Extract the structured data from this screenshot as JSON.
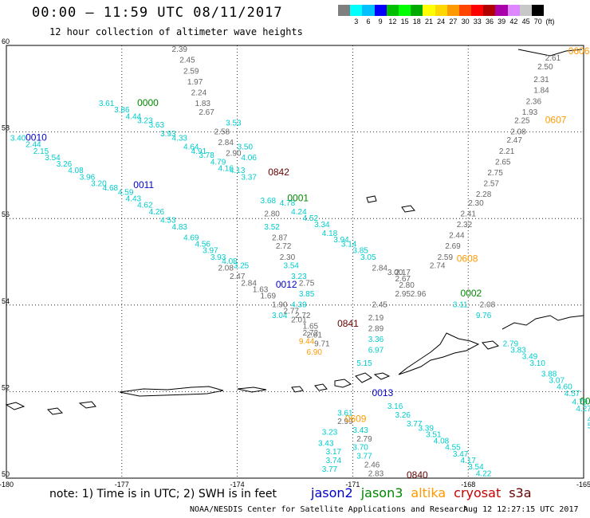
{
  "title": "00:00 – 11:59 UTC 08/11/2017",
  "subtitle": "12 hour collection of altimeter wave heights",
  "colorbar": {
    "colors": [
      "#7f7f7f",
      "#00ffff",
      "#00bfff",
      "#0000ff",
      "#00bf00",
      "#00ff00",
      "#00aa00",
      "#ffff00",
      "#ffd700",
      "#ff9900",
      "#ff4500",
      "#ff0000",
      "#b00000",
      "#aa00aa",
      "#dd88ff",
      "#c8c8c8",
      "#000000"
    ],
    "labels": [
      "3",
      "6",
      "9",
      "12",
      "15",
      "18",
      "21",
      "24",
      "27",
      "30",
      "33",
      "36",
      "39",
      "42",
      "45",
      "70",
      "(ft)"
    ]
  },
  "map": {
    "lon_ticks": [
      "-180",
      "-177",
      "-174",
      "-171",
      "-168",
      "-165"
    ],
    "lat_ticks": [
      "60",
      "58",
      "56",
      "54",
      "52",
      "50"
    ]
  },
  "satellite_colors": {
    "jason2": "#0000cc",
    "jason3": "#008800",
    "altika": "#ff9900",
    "cryosat": "#cc0000",
    "s3a": "#660000",
    "wave": "#00cccc",
    "grey": "#666666"
  },
  "time_labels": [
    {
      "text": "0000",
      "sat": "jason3",
      "lon": -176.6,
      "lat": 58.6
    },
    {
      "text": "0010",
      "sat": "jason2",
      "lon": -179.5,
      "lat": 57.8
    },
    {
      "text": "0011",
      "sat": "jason2",
      "lon": -176.7,
      "lat": 56.7
    },
    {
      "text": "0842",
      "sat": "s3a",
      "lon": -173.2,
      "lat": 57.0
    },
    {
      "text": "0001",
      "sat": "jason3",
      "lon": -172.7,
      "lat": 56.4
    },
    {
      "text": "0012",
      "sat": "jason2",
      "lon": -173.0,
      "lat": 54.4
    },
    {
      "text": "0841",
      "sat": "s3a",
      "lon": -171.4,
      "lat": 53.5
    },
    {
      "text": "0013",
      "sat": "jason2",
      "lon": -170.5,
      "lat": 51.9
    },
    {
      "text": "0609",
      "sat": "altika",
      "lon": -171.2,
      "lat": 51.3
    },
    {
      "text": "0840",
      "sat": "s3a",
      "lon": -169.6,
      "lat": 50.0
    },
    {
      "text": "0608",
      "sat": "altika",
      "lon": -168.3,
      "lat": 55.0
    },
    {
      "text": "0002",
      "sat": "jason3",
      "lon": -168.2,
      "lat": 54.2
    },
    {
      "text": "0607",
      "sat": "altika",
      "lon": -166.0,
      "lat": 58.2
    },
    {
      "text": "0606",
      "sat": "altika",
      "lon": -165.4,
      "lat": 59.8
    },
    {
      "text": "000",
      "sat": "jason3",
      "lon": -165.1,
      "lat": 51.7
    }
  ],
  "wave_tracks": [
    {
      "sat": "wave",
      "points": [
        {
          "v": "3.61",
          "lon": -177.6,
          "lat": 58.6
        },
        {
          "v": "3.86",
          "lon": -177.2,
          "lat": 58.45
        },
        {
          "v": "4.44",
          "lon": -176.9,
          "lat": 58.3
        },
        {
          "v": "3.23",
          "lon": -176.6,
          "lat": 58.2
        },
        {
          "v": "3.63",
          "lon": -176.3,
          "lat": 58.1
        },
        {
          "v": "3.93",
          "lon": -176.0,
          "lat": 57.9
        },
        {
          "v": "4.33",
          "lon": -175.7,
          "lat": 57.8
        },
        {
          "v": "4.64",
          "lon": -175.4,
          "lat": 57.6
        },
        {
          "v": "4.91",
          "lon": -175.2,
          "lat": 57.5
        },
        {
          "v": "3.78",
          "lon": -175.0,
          "lat": 57.4
        },
        {
          "v": "4.79",
          "lon": -174.7,
          "lat": 57.25
        },
        {
          "v": "4.16",
          "lon": -174.5,
          "lat": 57.1
        },
        {
          "v": "4.13",
          "lon": -174.2,
          "lat": 57.05
        },
        {
          "v": "3.37",
          "lon": -173.9,
          "lat": 56.9
        }
      ]
    },
    {
      "sat": "wave",
      "points": [
        {
          "v": "3.40",
          "lon": -179.9,
          "lat": 57.8
        },
        {
          "v": "2.44",
          "lon": -179.5,
          "lat": 57.65
        },
        {
          "v": "2.15",
          "lon": -179.3,
          "lat": 57.5
        },
        {
          "v": "3.54",
          "lon": -179.0,
          "lat": 57.35
        },
        {
          "v": "3.26",
          "lon": -178.7,
          "lat": 57.2
        },
        {
          "v": "4.08",
          "lon": -178.4,
          "lat": 57.05
        },
        {
          "v": "3.96",
          "lon": -178.1,
          "lat": 56.9
        },
        {
          "v": "3.20",
          "lon": -177.8,
          "lat": 56.75
        },
        {
          "v": "4.68",
          "lon": -177.5,
          "lat": 56.65
        },
        {
          "v": "4.59",
          "lon": -177.1,
          "lat": 56.55
        },
        {
          "v": "4.43",
          "lon": -176.9,
          "lat": 56.4
        },
        {
          "v": "4.62",
          "lon": -176.6,
          "lat": 56.25
        },
        {
          "v": "4.26",
          "lon": -176.3,
          "lat": 56.1
        },
        {
          "v": "4.53",
          "lon": -176.0,
          "lat": 55.9
        },
        {
          "v": "4.83",
          "lon": -175.7,
          "lat": 55.75
        },
        {
          "v": "4.69",
          "lon": -175.4,
          "lat": 55.5
        },
        {
          "v": "4.56",
          "lon": -175.1,
          "lat": 55.35
        },
        {
          "v": "3.97",
          "lon": -174.9,
          "lat": 55.2
        },
        {
          "v": "3.93",
          "lon": -174.7,
          "lat": 55.05
        },
        {
          "v": "4.08",
          "lon": -174.4,
          "lat": 54.95
        },
        {
          "v": "3.25",
          "lon": -174.1,
          "lat": 54.85
        }
      ]
    },
    {
      "sat": "grey",
      "points": [
        {
          "v": "2.39",
          "lon": -175.7,
          "lat": 59.85
        },
        {
          "v": "2.45",
          "lon": -175.5,
          "lat": 59.6
        },
        {
          "v": "2.59",
          "lon": -175.4,
          "lat": 59.35
        },
        {
          "v": "1.97",
          "lon": -175.3,
          "lat": 59.1
        },
        {
          "v": "2.24",
          "lon": -175.2,
          "lat": 58.85
        },
        {
          "v": "1.83",
          "lon": -175.1,
          "lat": 58.6
        },
        {
          "v": "2.67",
          "lon": -175.0,
          "lat": 58.4
        },
        {
          "v": "2.58",
          "lon": -174.6,
          "lat": 57.95
        },
        {
          "v": "2.84",
          "lon": -174.5,
          "lat": 57.7
        },
        {
          "v": "2.90",
          "lon": -174.3,
          "lat": 57.45
        },
        {
          "v": "2.80",
          "lon": -173.3,
          "lat": 56.05
        },
        {
          "v": "2.87",
          "lon": -173.1,
          "lat": 55.5
        },
        {
          "v": "2.72",
          "lon": -173.0,
          "lat": 55.3
        },
        {
          "v": "2.30",
          "lon": -172.9,
          "lat": 55.05
        },
        {
          "v": "2.75",
          "lon": -172.4,
          "lat": 54.45
        },
        {
          "v": "2.72",
          "lon": -172.5,
          "lat": 53.7
        },
        {
          "v": "1.65",
          "lon": -172.3,
          "lat": 53.45
        },
        {
          "v": "2.01",
          "lon": -172.2,
          "lat": 53.25
        }
      ]
    },
    {
      "sat": "wave",
      "points": [
        {
          "v": "3.53",
          "lon": -174.3,
          "lat": 58.15
        },
        {
          "v": "3.50",
          "lon": -174.0,
          "lat": 57.6
        },
        {
          "v": "4.06",
          "lon": -173.9,
          "lat": 57.35
        },
        {
          "v": "3.68",
          "lon": -173.4,
          "lat": 56.35
        },
        {
          "v": "3.52",
          "lon": -173.3,
          "lat": 55.75
        },
        {
          "v": "3.54",
          "lon": -172.8,
          "lat": 54.85
        },
        {
          "v": "3.23",
          "lon": -172.6,
          "lat": 54.6
        },
        {
          "v": "3.85",
          "lon": -172.4,
          "lat": 54.2
        },
        {
          "v": "4.39",
          "lon": -172.6,
          "lat": 53.95
        },
        {
          "v": "3.04",
          "lon": -173.1,
          "lat": 53.7
        }
      ]
    },
    {
      "sat": "wave",
      "points": [
        {
          "v": "4.78",
          "lon": -172.9,
          "lat": 56.3
        },
        {
          "v": "4.24",
          "lon": -172.6,
          "lat": 56.1
        },
        {
          "v": "4.52",
          "lon": -172.3,
          "lat": 55.95
        },
        {
          "v": "3.34",
          "lon": -172.0,
          "lat": 55.8
        },
        {
          "v": "4.18",
          "lon": -171.8,
          "lat": 55.6
        },
        {
          "v": "3.94",
          "lon": -171.5,
          "lat": 55.45
        },
        {
          "v": "3.14",
          "lon": -171.3,
          "lat": 55.35
        },
        {
          "v": "3.85",
          "lon": -171.0,
          "lat": 55.2
        },
        {
          "v": "3.05",
          "lon": -170.8,
          "lat": 55.05
        }
      ]
    },
    {
      "sat": "grey",
      "points": [
        {
          "v": "2.08",
          "lon": -174.5,
          "lat": 54.8
        },
        {
          "v": "2.47",
          "lon": -174.2,
          "lat": 54.6
        },
        {
          "v": "2.84",
          "lon": -173.9,
          "lat": 54.45
        },
        {
          "v": "1.63",
          "lon": -173.6,
          "lat": 54.3
        },
        {
          "v": "1.69",
          "lon": -173.4,
          "lat": 54.15
        },
        {
          "v": "1.90",
          "lon": -173.1,
          "lat": 53.95
        },
        {
          "v": "2.77",
          "lon": -172.8,
          "lat": 53.8
        },
        {
          "v": "2.01",
          "lon": -172.6,
          "lat": 53.6
        },
        {
          "v": "2.72",
          "lon": -172.3,
          "lat": 53.3
        },
        {
          "v": "9.71",
          "lon": -172.0,
          "lat": 53.05
        }
      ]
    },
    {
      "sat": "grey",
      "points": [
        {
          "v": "2.84",
          "lon": -170.5,
          "lat": 54.8
        },
        {
          "v": "3.00",
          "lon": -170.1,
          "lat": 54.7
        },
        {
          "v": "2.17",
          "lon": -169.9,
          "lat": 54.7
        },
        {
          "v": "2.67",
          "lon": -169.9,
          "lat": 54.55
        },
        {
          "v": "2.80",
          "lon": -169.8,
          "lat": 54.4
        },
        {
          "v": "2.95",
          "lon": -169.9,
          "lat": 54.2
        },
        {
          "v": "2.96",
          "lon": -169.5,
          "lat": 54.2
        },
        {
          "v": "2.45",
          "lon": -170.5,
          "lat": 53.95
        },
        {
          "v": "2.19",
          "lon": -170.6,
          "lat": 53.65
        },
        {
          "v": "2.89",
          "lon": -170.6,
          "lat": 53.4
        }
      ]
    },
    {
      "sat": "wave",
      "points": [
        {
          "v": "3.36",
          "lon": -170.6,
          "lat": 53.15
        },
        {
          "v": "6.97",
          "lon": -170.6,
          "lat": 52.9
        },
        {
          "v": "5.15",
          "lon": -170.9,
          "lat": 52.6
        },
        {
          "v": "3.16",
          "lon": -170.1,
          "lat": 51.6
        },
        {
          "v": "3.26",
          "lon": -169.9,
          "lat": 51.4
        },
        {
          "v": "3.77",
          "lon": -169.6,
          "lat": 51.2
        },
        {
          "v": "3.39",
          "lon": -169.3,
          "lat": 51.1
        },
        {
          "v": "3.51",
          "lon": -169.1,
          "lat": 50.95
        },
        {
          "v": "4.08",
          "lon": -168.9,
          "lat": 50.8
        },
        {
          "v": "4.55",
          "lon": -168.6,
          "lat": 50.65
        },
        {
          "v": "3.47",
          "lon": -168.4,
          "lat": 50.5
        },
        {
          "v": "4.17",
          "lon": -168.2,
          "lat": 50.35
        },
        {
          "v": "3.54",
          "lon": -168.0,
          "lat": 50.2
        },
        {
          "v": "4.22",
          "lon": -167.8,
          "lat": 50.05
        }
      ]
    },
    {
      "sat": "wave",
      "points": [
        {
          "v": "3.23",
          "lon": -171.8,
          "lat": 51.0
        },
        {
          "v": "3.43",
          "lon": -171.9,
          "lat": 50.75
        },
        {
          "v": "3.17",
          "lon": -171.7,
          "lat": 50.55
        },
        {
          "v": "3.74",
          "lon": -171.7,
          "lat": 50.35
        },
        {
          "v": "3.77",
          "lon": -171.8,
          "lat": 50.15
        },
        {
          "v": "3.70",
          "lon": -171.0,
          "lat": 50.65
        },
        {
          "v": "3.77",
          "lon": -170.9,
          "lat": 50.45
        },
        {
          "v": "3.61",
          "lon": -171.4,
          "lat": 51.45
        },
        {
          "v": "3.43",
          "lon": -171.0,
          "lat": 51.05
        }
      ]
    },
    {
      "sat": "grey",
      "points": [
        {
          "v": "2.79",
          "lon": -170.9,
          "lat": 50.85
        },
        {
          "v": "2.46",
          "lon": -170.7,
          "lat": 50.25
        },
        {
          "v": "2.83",
          "lon": -170.6,
          "lat": 50.05
        },
        {
          "v": "2.99",
          "lon": -171.4,
          "lat": 51.25
        }
      ]
    },
    {
      "sat": "grey",
      "points": [
        {
          "v": "2.61",
          "lon": -166.0,
          "lat": 59.65
        },
        {
          "v": "2.50",
          "lon": -166.2,
          "lat": 59.45
        },
        {
          "v": "2.31",
          "lon": -166.3,
          "lat": 59.15
        },
        {
          "v": "1.84",
          "lon": -166.3,
          "lat": 58.9
        },
        {
          "v": "2.36",
          "lon": -166.5,
          "lat": 58.65
        },
        {
          "v": "1.93",
          "lon": -166.6,
          "lat": 58.4
        },
        {
          "v": "2.25",
          "lon": -166.8,
          "lat": 58.2
        },
        {
          "v": "2.08",
          "lon": -166.9,
          "lat": 57.95
        },
        {
          "v": "2.47",
          "lon": -167.0,
          "lat": 57.75
        },
        {
          "v": "2.21",
          "lon": -167.2,
          "lat": 57.5
        },
        {
          "v": "2.65",
          "lon": -167.3,
          "lat": 57.25
        },
        {
          "v": "2.75",
          "lon": -167.5,
          "lat": 57.0
        },
        {
          "v": "2.57",
          "lon": -167.6,
          "lat": 56.75
        },
        {
          "v": "2.28",
          "lon": -167.8,
          "lat": 56.5
        },
        {
          "v": "2.30",
          "lon": -168.0,
          "lat": 56.3
        },
        {
          "v": "2.41",
          "lon": -168.2,
          "lat": 56.05
        },
        {
          "v": "2.32",
          "lon": -168.3,
          "lat": 55.8
        },
        {
          "v": "2.44",
          "lon": -168.5,
          "lat": 55.55
        },
        {
          "v": "2.69",
          "lon": -168.6,
          "lat": 55.3
        },
        {
          "v": "2.59",
          "lon": -168.8,
          "lat": 55.05
        },
        {
          "v": "2.74",
          "lon": -169.0,
          "lat": 54.85
        },
        {
          "v": "2.08",
          "lon": -167.7,
          "lat": 53.95
        }
      ]
    },
    {
      "sat": "wave",
      "points": [
        {
          "v": "3.11",
          "lon": -168.4,
          "lat": 53.95
        },
        {
          "v": "9.76",
          "lon": -167.8,
          "lat": 53.7
        },
        {
          "v": "2.79",
          "lon": -167.1,
          "lat": 53.05
        },
        {
          "v": "3.83",
          "lon": -166.9,
          "lat": 52.9
        },
        {
          "v": "3.49",
          "lon": -166.6,
          "lat": 52.75
        },
        {
          "v": "3.10",
          "lon": -166.4,
          "lat": 52.6
        },
        {
          "v": "3.88",
          "lon": -166.1,
          "lat": 52.35
        },
        {
          "v": "3.07",
          "lon": -165.9,
          "lat": 52.2
        },
        {
          "v": "4.60",
          "lon": -165.7,
          "lat": 52.05
        },
        {
          "v": "4.57",
          "lon": -165.5,
          "lat": 51.9
        },
        {
          "v": "4.79",
          "lon": -165.3,
          "lat": 51.7
        },
        {
          "v": "4.27",
          "lon": -165.2,
          "lat": 51.55
        },
        {
          "v": "4.62",
          "lon": -164.9,
          "lat": 51.3
        },
        {
          "v": "5.",
          "lon": -164.9,
          "lat": 51.15
        }
      ]
    },
    {
      "sat": "altika",
      "points": [
        {
          "v": "9.44",
          "lon": -172.4,
          "lat": 53.1
        },
        {
          "v": "6.90",
          "lon": -172.2,
          "lat": 52.85
        }
      ]
    }
  ],
  "footer": {
    "note": "note: 1) Time is in UTC; 2) SWH is in feet",
    "sats": [
      {
        "name": "jason2",
        "color": "#0000cc"
      },
      {
        "name": "jason3",
        "color": "#008800"
      },
      {
        "name": "altika",
        "color": "#ff9900"
      },
      {
        "name": "cryosat",
        "color": "#cc0000"
      },
      {
        "name": "s3a",
        "color": "#660000"
      }
    ],
    "credit": "NOAA/NESDIS Center for Satellite Applications and Research",
    "timestamp": "Aug 12 12:27:15 UTC 2017"
  }
}
